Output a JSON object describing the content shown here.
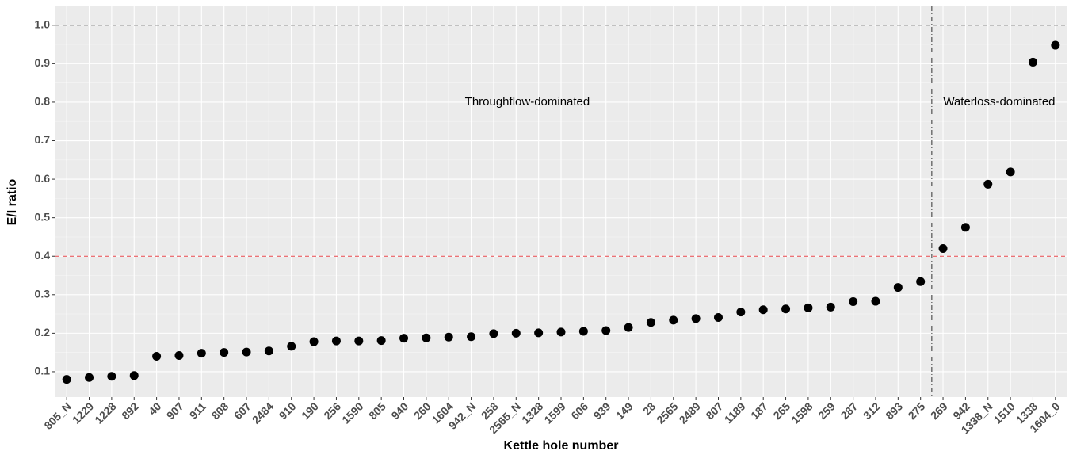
{
  "chart_data": {
    "type": "scatter",
    "x_label": "Kettle hole number",
    "y_label": "E/I ratio",
    "categories": [
      "805_N",
      "1229",
      "1228",
      "892",
      "40",
      "907",
      "911",
      "808",
      "607",
      "2484",
      "910",
      "190",
      "256",
      "1590",
      "805",
      "940",
      "260",
      "1604",
      "942_N",
      "258",
      "2565_N",
      "1328",
      "1599",
      "606",
      "939",
      "149",
      "28",
      "2565",
      "2489",
      "807",
      "1189",
      "187",
      "265",
      "1598",
      "259",
      "287",
      "312",
      "893",
      "275",
      "269",
      "942",
      "1338_N",
      "1510",
      "1338",
      "1604_0"
    ],
    "values": [
      0.08,
      0.085,
      0.088,
      0.09,
      0.14,
      0.142,
      0.148,
      0.15,
      0.151,
      0.154,
      0.166,
      0.178,
      0.18,
      0.18,
      0.181,
      0.187,
      0.188,
      0.19,
      0.191,
      0.199,
      0.2,
      0.201,
      0.203,
      0.205,
      0.207,
      0.215,
      0.228,
      0.234,
      0.238,
      0.241,
      0.255,
      0.261,
      0.263,
      0.266,
      0.268,
      0.282,
      0.283,
      0.319,
      0.334,
      0.42,
      0.475,
      0.587,
      0.619,
      0.904,
      0.948
    ],
    "color": "#000000",
    "ylim": [
      0.034,
      1.049
    ],
    "yticks": [
      0.1,
      0.2,
      0.3,
      0.4,
      0.5,
      0.6,
      0.7,
      0.8,
      0.9,
      {
        "value": 1,
        "label": "1.0"
      }
    ],
    "grid": true,
    "hlines": [
      {
        "y": 1,
        "color": "#333333"
      },
      {
        "y": 0.4,
        "color": "#e8474c"
      }
    ],
    "vline_x": 38.5,
    "annotations": [
      {
        "text": "Throughflow-dominated",
        "x": 20.5,
        "y": 0.8
      },
      {
        "text": "Waterloss-dominated",
        "x": 41.5,
        "y": 0.8
      }
    ]
  }
}
